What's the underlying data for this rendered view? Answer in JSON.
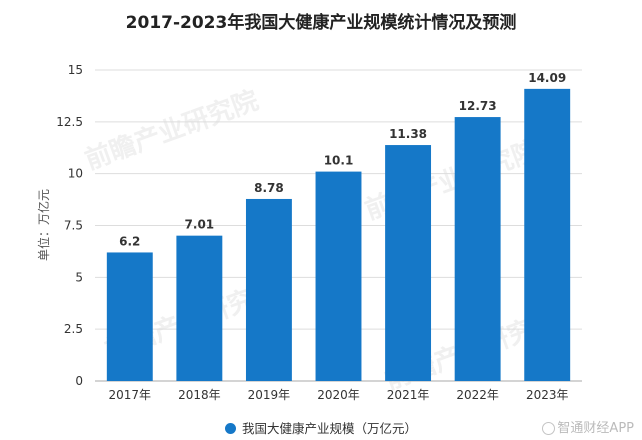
{
  "chart_data": {
    "type": "bar",
    "title": "2017-2023年我国大健康产业规模统计情况及预测",
    "categories": [
      "2017年",
      "2018年",
      "2019年",
      "2020年",
      "2021年",
      "2022年",
      "2023年"
    ],
    "series": [
      {
        "name": "我国大健康产业规模（万亿元）",
        "values": [
          6.2,
          7.01,
          8.78,
          10.1,
          11.38,
          12.73,
          14.09
        ]
      }
    ],
    "value_labels": [
      "6.2",
      "7.01",
      "8.78",
      "10.1",
      "11.38",
      "12.73",
      "14.09"
    ],
    "ylabel": "单位：万亿元",
    "xlabel": "",
    "ylim": [
      0,
      15
    ],
    "yticks": [
      0,
      2.5,
      5,
      7.5,
      10,
      12.5,
      15
    ],
    "ytick_labels": [
      "0",
      "2.5",
      "5",
      "7.5",
      "10",
      "12.5",
      "15"
    ],
    "grid": true,
    "legend_position": "bottom",
    "colors": {
      "bar": "#1578c8",
      "grid": "#dddddd",
      "axis": "#aaaaaa",
      "text": "#333333"
    }
  },
  "watermark": "前瞻产业研究院",
  "source_label": "智通财经APP"
}
